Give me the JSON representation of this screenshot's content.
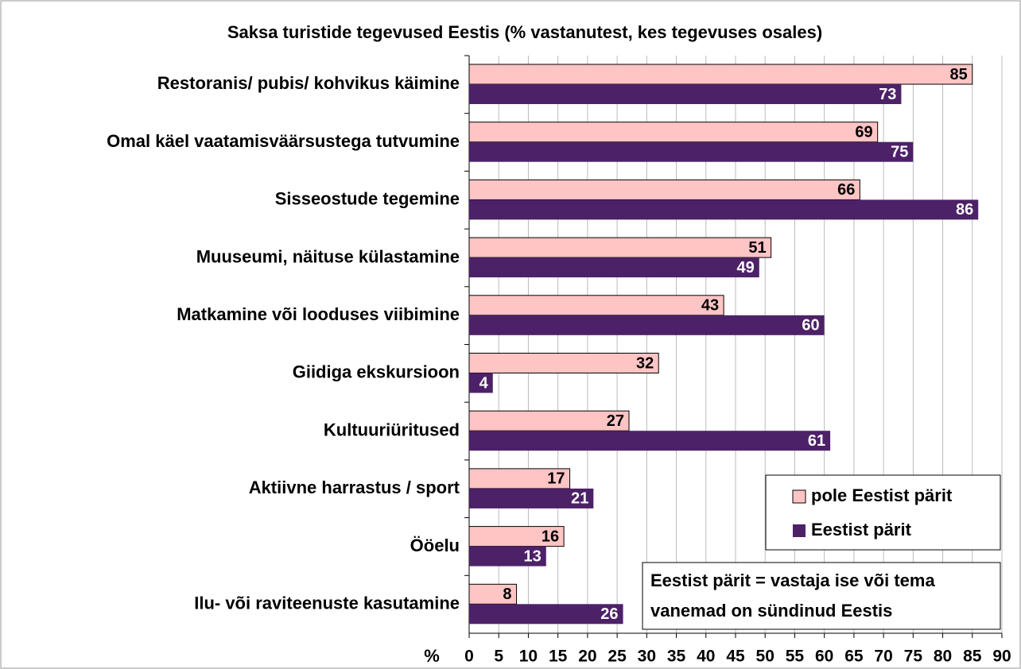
{
  "chart_data": {
    "type": "bar",
    "orientation": "horizontal",
    "title": "Saksa turistide tegevused Eestis (% vastanutest, kes tegevuses osales)",
    "x_label": "%",
    "categories": [
      "Restoranis/ pubis/ kohvikus käimine",
      "Omal käel vaatamisväärsustega tutvumine",
      "Sisseostude tegemine",
      "Muuseumi, näituse külastamine",
      "Matkamine või looduses viibimine",
      "Giidiga ekskursioon",
      "Kultuuriüritused",
      "Aktiivne harrastus / sport",
      "Ööelu",
      "Ilu- või raviteenuste kasutamine"
    ],
    "series": [
      {
        "name": "pole Eestist pärit",
        "color": "#ffc4c4",
        "values": [
          85,
          69,
          66,
          51,
          43,
          32,
          27,
          17,
          16,
          8
        ]
      },
      {
        "name": "Eestist pärit",
        "color": "#4d2168",
        "values": [
          73,
          75,
          86,
          49,
          60,
          4,
          61,
          21,
          13,
          26
        ]
      }
    ],
    "xlim": [
      0,
      90
    ],
    "xticks": [
      0,
      5,
      10,
      15,
      20,
      25,
      30,
      35,
      40,
      45,
      50,
      55,
      60,
      65,
      70,
      75,
      80,
      85,
      90
    ],
    "grid": true,
    "legend": "lower right",
    "annotation": [
      "Eestist pärit = vastaja ise või tema",
      "vanemad on sündinud Eestis"
    ]
  }
}
